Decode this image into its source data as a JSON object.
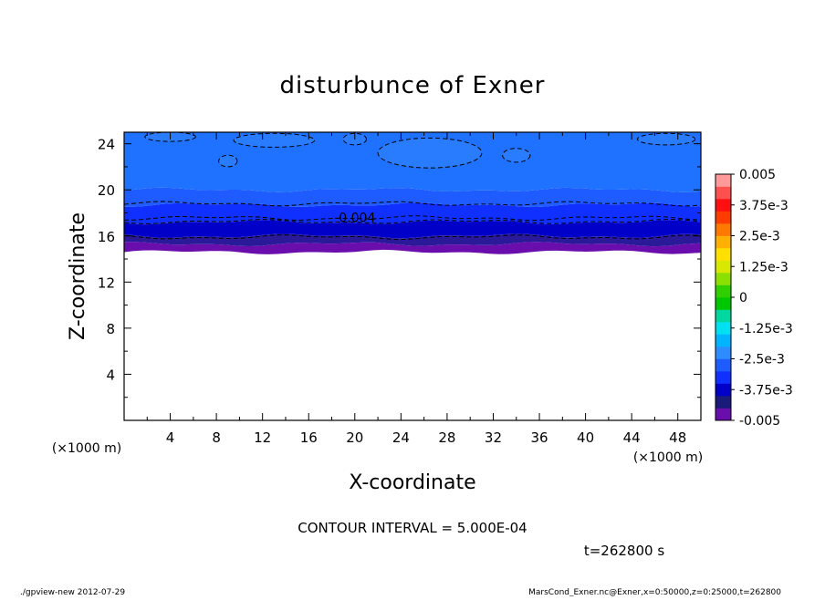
{
  "chart_data": {
    "type": "heatmap",
    "title": "disturbunce of Exner",
    "xlabel": "X-coordinate",
    "ylabel": "Z-coordinate",
    "x_unit": "(×1000 m)",
    "y_unit": "(×1000 m)",
    "xlim": [
      0,
      50
    ],
    "ylim": [
      0,
      25
    ],
    "x_ticks": [
      4,
      8,
      12,
      16,
      20,
      24,
      28,
      32,
      36,
      40,
      44,
      48
    ],
    "y_ticks": [
      4,
      8,
      12,
      16,
      20,
      24
    ],
    "contour_interval_text": "CONTOUR INTERVAL = 5.000E-04",
    "contour_label": "-0.004",
    "contour_label_x": 20,
    "contour_label_z": 17.6,
    "time_text": "t=262800 s",
    "colorbar": {
      "min": -0.005,
      "max": 0.005,
      "tick_labels": [
        "0.005",
        "3.75e-3",
        "2.5e-3",
        "1.25e-3",
        "0",
        "-1.25e-3",
        "-2.5e-3",
        "-3.75e-3",
        "-0.005"
      ],
      "levels": [
        -0.005,
        -0.0045,
        -0.004,
        -0.0035,
        -0.003,
        -0.0025,
        -0.002,
        -0.0015,
        -0.001,
        -0.0005,
        0,
        0.0005,
        0.001,
        0.0015,
        0.002,
        0.0025,
        0.003,
        0.0035,
        0.004,
        0.0045,
        0.005
      ],
      "colors": [
        "#6a0dad",
        "#1a1a7a",
        "#0000c8",
        "#1030ff",
        "#1e5cff",
        "#2d8cff",
        "#00b4ff",
        "#00e0f0",
        "#00d8a0",
        "#00c800",
        "#30d000",
        "#8ce000",
        "#d8e800",
        "#ffe000",
        "#ffb000",
        "#ff7800",
        "#ff3c00",
        "#ff1010",
        "#ff5050",
        "#ff9a9a"
      ]
    },
    "bands": [
      {
        "z_bottom": 14.6,
        "z_top": 15.3,
        "color": "#6a0dad",
        "level": "-0.005 to -0.0045"
      },
      {
        "z_bottom": 15.3,
        "z_top": 16.0,
        "color": "#2a1a9a",
        "level": "-0.0045 to -0.004"
      },
      {
        "z_bottom": 16.0,
        "z_top": 17.2,
        "color": "#0000c8",
        "level": "-0.004 to -0.0035"
      },
      {
        "z_bottom": 17.2,
        "z_top": 18.7,
        "color": "#1030ff",
        "level": "-0.0035 to -0.003"
      },
      {
        "z_bottom": 18.7,
        "z_top": 20.0,
        "color": "#1e5cff",
        "level": "-0.003 to -0.0025"
      },
      {
        "z_bottom": 20.0,
        "z_top": 25.0,
        "color": "#1f72ff",
        "level": "-0.0025 to -0.002"
      }
    ],
    "grid": false,
    "legend": "colorbar right"
  },
  "footer": {
    "left": "./gpview-new  2012-07-29",
    "right": "MarsCond_Exner.nc@Exner,x=0:50000,z=0:25000,t=262800"
  }
}
